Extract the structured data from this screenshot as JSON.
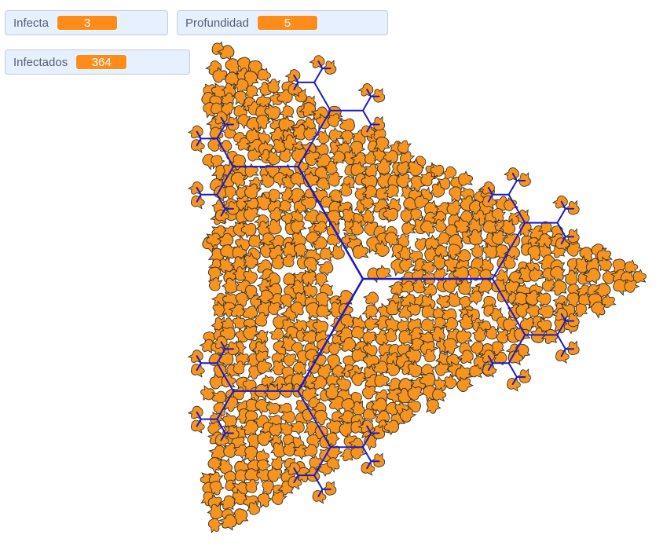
{
  "monitors": [
    {
      "label": "Infecta",
      "value": "3"
    },
    {
      "label": "Profundidad",
      "value": "5"
    },
    {
      "label": "Infectados",
      "value": "364"
    }
  ],
  "colors": {
    "monitor_bg": "#e6f0ff",
    "monitor_border": "#c4ccd9",
    "monitor_label": "#575e75",
    "value_bg": "#ff8c1a",
    "value_text": "#ffffff",
    "fractal_lines": "#1a1acc",
    "sprite_body": "#f7941d",
    "sprite_outline": "#333333"
  },
  "fractal": {
    "depth": 5,
    "branches": 3,
    "sprite_icon": "orange-sprite-icon"
  }
}
